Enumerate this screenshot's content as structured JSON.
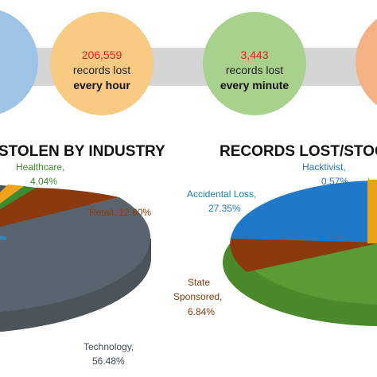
{
  "colors": {
    "band": "#d4d4d4",
    "circle_blue": "#9dc3e6",
    "circle_orange": "#f9cb82",
    "circle_green": "#a9d18e",
    "circle_salmon": "#f4b183",
    "number_red": "#e02020",
    "healthcare": "#3c8c2f",
    "retail": "#8b3a0e",
    "technology": "#5a646e",
    "other_blue": "#2e86c1",
    "other_yellow": "#f1a21b",
    "accidental": "#1f78c8",
    "state": "#8b3a0e",
    "hacktivist": "#1f78c8",
    "insider": "#e8a317",
    "green_big": "#5b9b36"
  },
  "stats": [
    {
      "number": "206,559",
      "line2": "records lost",
      "line3": "every hour"
    },
    {
      "number": "3,443",
      "line2": "records lost",
      "line3": "every minute"
    }
  ],
  "headings": {
    "left": "STOLEN BY INDUSTRY",
    "right": "RECORDS LOST/STOC"
  },
  "chart_data": [
    {
      "type": "pie",
      "title": "STOLEN BY INDUSTRY",
      "slices": [
        {
          "name": "Technology",
          "value": 56.48,
          "label_name": "Technology,",
          "label_value": "56.48%"
        },
        {
          "name": "Retail",
          "value": 12.6,
          "label_name": "Retail, 12.60%",
          "label_value": ""
        },
        {
          "name": "Healthcare",
          "value": 4.04,
          "label_name": "Healthcare,",
          "label_value": "4.04%"
        }
      ]
    },
    {
      "type": "pie",
      "title": "RECORDS LOST/STOC",
      "slices": [
        {
          "name": "Accidental Loss",
          "value": 27.35,
          "label_name": "Accidental Loss,",
          "label_value": "27.35%"
        },
        {
          "name": "State Sponsored",
          "value": 6.84,
          "label_name": "State",
          "label_name2": "Sponsored,",
          "label_value": "6.84%"
        },
        {
          "name": "Hacktivist",
          "value": 0.57,
          "label_name": "Hacktivist,",
          "label_value": "0.57%"
        },
        {
          "name": "In",
          "value": null,
          "label_name": "In",
          "label_value": ""
        }
      ]
    }
  ]
}
